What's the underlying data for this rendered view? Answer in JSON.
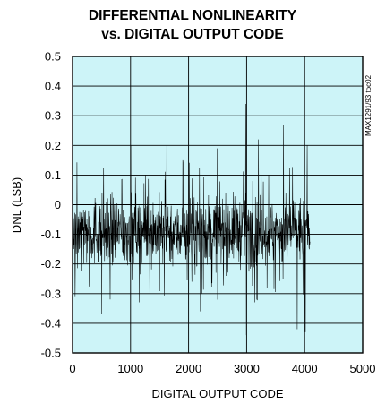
{
  "chart_data": {
    "type": "line",
    "title_line1": "DIFFERENTIAL NONLINEARITY",
    "title_line2": "vs. DIGITAL OUTPUT CODE",
    "xlabel": "DIGITAL OUTPUT CODE",
    "ylabel": "DNL (LSB)",
    "figure_id": "MAX1291/93 toc02",
    "xlim": [
      0,
      5000
    ],
    "ylim": [
      -0.5,
      0.5
    ],
    "x_ticks": [
      "0",
      "1000",
      "2000",
      "3000",
      "4000",
      "5000"
    ],
    "y_ticks": [
      "0.5",
      "0.4",
      "0.3",
      "0.2",
      "0.1",
      "0",
      "-0.1",
      "-0.2",
      "-0.3",
      "-0.4",
      "-0.5"
    ],
    "grid": true,
    "colors": {
      "plot_background": "#cdf4f8",
      "trace": "#000000",
      "grid": "#000000"
    },
    "series": [
      {
        "code_range": [
          0,
          4095
        ],
        "typical_band": [
          -0.25,
          0.07
        ],
        "min_value": -0.45,
        "max_value": 0.34,
        "spikes": [
          {
            "x": 2985,
            "y": 0.34
          },
          {
            "x": 2995,
            "y": -0.44
          },
          {
            "x": 3635,
            "y": 0.27
          },
          {
            "x": 1005,
            "y": 0.2
          },
          {
            "x": 1625,
            "y": 0.2
          },
          {
            "x": 2495,
            "y": 0.19
          },
          {
            "x": 3205,
            "y": 0.22
          },
          {
            "x": 4045,
            "y": 0.2
          },
          {
            "x": 3870,
            "y": -0.42
          },
          {
            "x": 4010,
            "y": -0.43
          },
          {
            "x": 505,
            "y": -0.37
          },
          {
            "x": 2205,
            "y": -0.36
          }
        ]
      }
    ]
  }
}
